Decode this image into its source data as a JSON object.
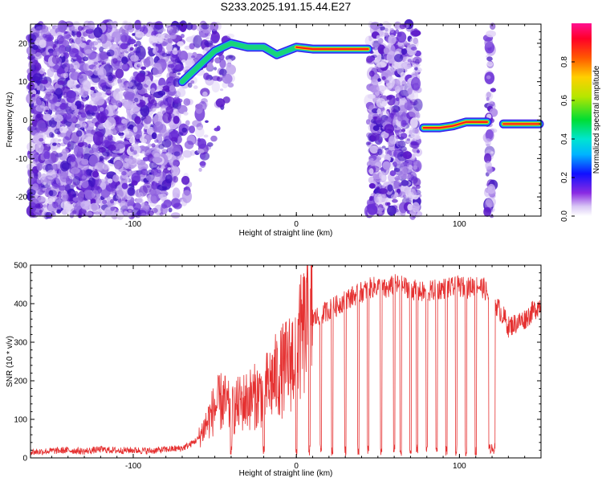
{
  "title": "S233.2025.191.15.44.E27",
  "colors": {
    "noise": "#7a3fe0",
    "snr_line": "#e53030",
    "axis": "#000000"
  },
  "chart_data": [
    {
      "type": "heatmap",
      "xlabel": "Height of straight line (km)",
      "ylabel": "Frequency (Hz)",
      "xlim": [
        -163,
        150
      ],
      "ylim": [
        -25,
        25
      ],
      "xticks": [
        -100,
        0,
        100
      ],
      "xtick_labels": [
        "-100",
        "0",
        "100"
      ],
      "yticks": [
        -20,
        -10,
        0,
        10,
        20
      ],
      "ytick_labels": [
        "-20",
        "-10",
        "0",
        "10",
        "20"
      ],
      "colorbar": {
        "label": "Normalized spectral amplitude",
        "range": [
          0,
          1
        ],
        "ticks": [
          0,
          0.2,
          0.4,
          0.6,
          0.8
        ],
        "tick_labels": [
          "0.0",
          "0.2",
          "0.4",
          "0.6",
          "0.8"
        ]
      },
      "ridges": [
        {
          "points": [
            [
              -70,
              10
            ],
            [
              -60,
              14
            ],
            [
              -50,
              18
            ],
            [
              -40,
              20
            ],
            [
              -30,
              19
            ],
            [
              -20,
              19
            ],
            [
              -12,
              17
            ],
            [
              -6,
              18
            ],
            [
              0,
              19
            ],
            [
              10,
              18.5
            ],
            [
              20,
              18.5
            ],
            [
              30,
              18.5
            ],
            [
              44,
              18.5
            ]
          ]
        },
        {
          "points": [
            [
              78,
              -2
            ],
            [
              88,
              -2
            ],
            [
              96,
              -1.5
            ],
            [
              104,
              -0.5
            ],
            [
              112,
              -0.5
            ],
            [
              117,
              -0.5
            ]
          ]
        },
        {
          "points": [
            [
              127,
              -1
            ],
            [
              135,
              -1
            ],
            [
              142,
              -1
            ],
            [
              149,
              -1
            ]
          ]
        }
      ]
    },
    {
      "type": "line",
      "xlabel": "Height of straight line (km)",
      "ylabel": "SNR (10 * v/v)",
      "xlim": [
        -163,
        150
      ],
      "ylim": [
        0,
        500
      ],
      "xticks": [
        -100,
        0,
        100
      ],
      "xtick_labels": [
        "-100",
        "0",
        "100"
      ],
      "yticks": [
        0,
        100,
        200,
        300,
        400,
        500
      ],
      "ytick_labels": [
        "0",
        "100",
        "200",
        "300",
        "400",
        "500"
      ],
      "x": [
        -163,
        -150,
        -140,
        -130,
        -120,
        -110,
        -100,
        -90,
        -80,
        -70,
        -65,
        -60,
        -55,
        -50,
        -45,
        -40,
        -35,
        -30,
        -25,
        -20,
        -15,
        -10,
        -5,
        0,
        5,
        10,
        15,
        20,
        25,
        30,
        35,
        40,
        45,
        50,
        55,
        60,
        65,
        70,
        75,
        80,
        85,
        90,
        95,
        100,
        105,
        110,
        115,
        118,
        120,
        122,
        125,
        128,
        130,
        135,
        140,
        145,
        150
      ],
      "values": [
        15,
        18,
        20,
        17,
        22,
        19,
        20,
        18,
        22,
        25,
        35,
        50,
        90,
        130,
        150,
        120,
        140,
        150,
        160,
        170,
        200,
        220,
        240,
        280,
        330,
        360,
        370,
        385,
        395,
        410,
        420,
        430,
        440,
        445,
        435,
        450,
        445,
        440,
        430,
        430,
        435,
        440,
        440,
        445,
        440,
        450,
        440,
        420,
        30,
        400,
        380,
        360,
        340,
        350,
        360,
        380,
        400
      ],
      "dips": [
        -40,
        -20,
        0,
        8,
        15,
        22,
        30,
        38,
        44,
        52,
        60,
        64,
        70,
        74,
        80,
        86,
        92,
        98,
        104,
        110
      ]
    }
  ]
}
